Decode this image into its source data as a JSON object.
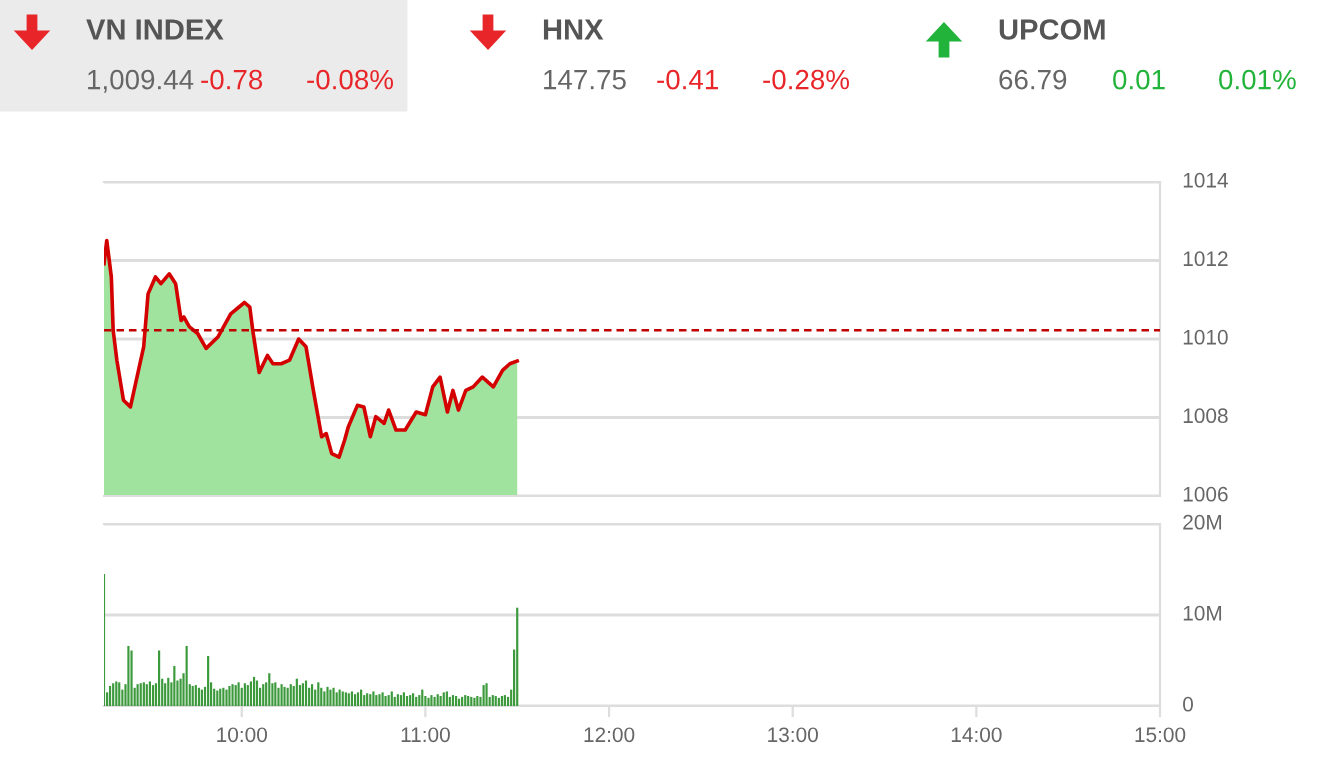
{
  "chart_data": [
    {
      "type": "other",
      "categories": [
        "VN INDEX",
        "HNX",
        "UPCOM"
      ],
      "colors": [
        "#e8262a",
        "#e8262a",
        "#22b33a"
      ],
      "series": [
        {
          "values": [
            1009.44,
            147.75,
            66.79
          ],
          "value_labels": [
            "1,009.44",
            "147.75",
            "66.79"
          ]
        },
        {
          "values": [
            -0.78,
            -0.41,
            0.01
          ],
          "value_labels": [
            "-0.78",
            "-0.41",
            "0.01"
          ]
        },
        {
          "values": [
            -0.08,
            -0.28,
            0.01
          ],
          "value_labels": [
            "-0.08%",
            "-0.28%",
            "0.01%"
          ]
        }
      ]
    },
    {
      "type": "area",
      "xlim": [
        9.25,
        15
      ],
      "ylim": [
        1006,
        1014
      ],
      "yticks": [
        1006,
        1008,
        1010,
        1012,
        1014
      ],
      "grid": "y",
      "tick_labels": "y",
      "ref_lines": [
        {
          "axis": "y",
          "value": 1010.22,
          "color": "#c00000",
          "line_style": "dashed"
        }
      ],
      "series": [
        {
          "type": "area",
          "color": "#9fe39f",
          "x": [
            9.25,
            9.265,
            9.29,
            9.3,
            9.32,
            9.356,
            9.394,
            9.45,
            9.466,
            9.49,
            9.53,
            9.56,
            9.605,
            9.64,
            9.67,
            9.685,
            9.715,
            9.76,
            9.806,
            9.87,
            9.94,
            10.015,
            10.044,
            10.06,
            10.095,
            10.14,
            10.17,
            10.215,
            10.26,
            10.31,
            10.35,
            10.39,
            10.435,
            10.46,
            10.49,
            10.53,
            10.56,
            10.58,
            10.63,
            10.665,
            10.7,
            10.73,
            10.775,
            10.8,
            10.84,
            10.89,
            10.95,
            11.0,
            11.04,
            11.08,
            11.12,
            11.15,
            11.18,
            11.22,
            11.26,
            11.31,
            11.37,
            11.42,
            11.46,
            11.5
          ],
          "values": [
            1011.92,
            1012.51,
            1011.58,
            1010.22,
            1009.46,
            1008.44,
            1008.27,
            1009.46,
            1009.8,
            1011.15,
            1011.58,
            1011.41,
            1011.66,
            1011.41,
            1010.47,
            1010.56,
            1010.31,
            1010.14,
            1009.76,
            1010.05,
            1010.64,
            1010.93,
            1010.81,
            1010.22,
            1009.15,
            1009.58,
            1009.37,
            1009.37,
            1009.46,
            1010.0,
            1009.8,
            1008.69,
            1007.51,
            1007.59,
            1007.08,
            1006.99,
            1007.42,
            1007.76,
            1008.31,
            1008.27,
            1007.51,
            1008.02,
            1007.85,
            1008.19,
            1007.68,
            1007.68,
            1008.14,
            1008.07,
            1008.78,
            1009.03,
            1008.14,
            1008.69,
            1008.19,
            1008.69,
            1008.78,
            1009.03,
            1008.78,
            1009.2,
            1009.37,
            1009.44
          ]
        },
        {
          "type": "line",
          "color": "#d40000",
          "x": [
            9.25,
            9.265,
            9.29,
            9.3,
            9.32,
            9.356,
            9.394,
            9.45,
            9.466,
            9.49,
            9.53,
            9.56,
            9.605,
            9.64,
            9.67,
            9.685,
            9.715,
            9.76,
            9.806,
            9.87,
            9.94,
            10.015,
            10.044,
            10.06,
            10.095,
            10.14,
            10.17,
            10.215,
            10.26,
            10.31,
            10.35,
            10.39,
            10.435,
            10.46,
            10.49,
            10.53,
            10.56,
            10.58,
            10.63,
            10.665,
            10.7,
            10.73,
            10.775,
            10.8,
            10.84,
            10.89,
            10.95,
            11.0,
            11.04,
            11.08,
            11.12,
            11.15,
            11.18,
            11.22,
            11.26,
            11.31,
            11.37,
            11.42,
            11.46,
            11.5
          ],
          "values": [
            1011.92,
            1012.51,
            1011.58,
            1010.22,
            1009.46,
            1008.44,
            1008.27,
            1009.46,
            1009.8,
            1011.15,
            1011.58,
            1011.41,
            1011.66,
            1011.41,
            1010.47,
            1010.56,
            1010.31,
            1010.14,
            1009.76,
            1010.05,
            1010.64,
            1010.93,
            1010.81,
            1010.22,
            1009.15,
            1009.58,
            1009.37,
            1009.37,
            1009.46,
            1010.0,
            1009.8,
            1008.69,
            1007.51,
            1007.59,
            1007.08,
            1006.99,
            1007.42,
            1007.76,
            1008.31,
            1008.27,
            1007.51,
            1008.02,
            1007.85,
            1008.19,
            1007.68,
            1007.68,
            1008.14,
            1008.07,
            1008.78,
            1009.03,
            1008.14,
            1008.69,
            1008.19,
            1008.69,
            1008.78,
            1009.03,
            1008.78,
            1009.2,
            1009.37,
            1009.44
          ]
        }
      ]
    },
    {
      "type": "bar",
      "xlim": [
        9.25,
        15
      ],
      "ylim": [
        0,
        20
      ],
      "grid": "y",
      "yticks": [
        0,
        {
          "value": 10,
          "label": "10M"
        },
        {
          "value": 20,
          "label": "20M"
        }
      ],
      "xticks": [
        {
          "value": 10,
          "label": "10:00"
        },
        {
          "value": 11,
          "label": "11:00"
        },
        {
          "value": 12,
          "label": "12:00"
        },
        {
          "value": 13,
          "label": "13:00"
        },
        {
          "value": 14,
          "label": "14:00"
        },
        {
          "value": 15,
          "label": "15:00"
        }
      ],
      "series": [
        {
          "color": "#3c9a3c",
          "x": [
            9.25,
            9.267,
            9.283,
            9.3,
            9.317,
            9.333,
            9.35,
            9.367,
            9.383,
            9.4,
            9.417,
            9.433,
            9.45,
            9.467,
            9.483,
            9.5,
            9.517,
            9.533,
            9.55,
            9.567,
            9.583,
            9.6,
            9.617,
            9.633,
            9.65,
            9.667,
            9.683,
            9.7,
            9.717,
            9.733,
            9.75,
            9.767,
            9.783,
            9.8,
            9.817,
            9.833,
            9.85,
            9.867,
            9.883,
            9.9,
            9.917,
            9.933,
            9.95,
            9.967,
            9.983,
            10.0,
            10.017,
            10.033,
            10.05,
            10.067,
            10.083,
            10.1,
            10.117,
            10.133,
            10.15,
            10.167,
            10.183,
            10.2,
            10.217,
            10.233,
            10.25,
            10.267,
            10.283,
            10.3,
            10.317,
            10.333,
            10.35,
            10.367,
            10.383,
            10.4,
            10.417,
            10.433,
            10.45,
            10.467,
            10.483,
            10.5,
            10.517,
            10.533,
            10.55,
            10.567,
            10.583,
            10.6,
            10.617,
            10.633,
            10.65,
            10.667,
            10.683,
            10.7,
            10.717,
            10.733,
            10.75,
            10.767,
            10.783,
            10.8,
            10.817,
            10.833,
            10.85,
            10.867,
            10.883,
            10.9,
            10.917,
            10.933,
            10.95,
            10.967,
            10.983,
            11.0,
            11.017,
            11.033,
            11.05,
            11.067,
            11.083,
            11.1,
            11.117,
            11.133,
            11.15,
            11.167,
            11.183,
            11.2,
            11.217,
            11.233,
            11.25,
            11.267,
            11.283,
            11.3,
            11.317,
            11.333,
            11.35,
            11.367,
            11.383,
            11.4,
            11.417,
            11.433,
            11.45,
            11.467,
            11.483,
            11.5
          ],
          "values": [
            14.5,
            1.5,
            2.2,
            2.5,
            2.7,
            2.6,
            1.8,
            2.4,
            6.6,
            6.1,
            2.0,
            2.4,
            2.5,
            2.6,
            2.4,
            2.7,
            2.3,
            2.5,
            6.1,
            3.0,
            2.5,
            3.1,
            2.6,
            4.4,
            2.8,
            3.0,
            3.6,
            6.6,
            2.4,
            2.2,
            2.3,
            2.0,
            1.8,
            2.1,
            5.5,
            2.6,
            1.9,
            1.7,
            1.9,
            2.0,
            1.8,
            2.2,
            2.4,
            2.3,
            2.6,
            2.0,
            2.5,
            2.3,
            2.7,
            3.2,
            2.8,
            2.0,
            2.4,
            2.6,
            3.6,
            2.5,
            2.6,
            2.0,
            2.4,
            2.1,
            2.0,
            2.4,
            2.2,
            3.0,
            2.3,
            2.5,
            2.8,
            2.0,
            2.4,
            1.8,
            2.6,
            2.0,
            1.6,
            2.1,
            1.8,
            2.0,
            1.5,
            1.8,
            1.6,
            1.5,
            1.4,
            1.6,
            1.3,
            1.5,
            1.8,
            1.2,
            1.4,
            1.3,
            1.6,
            1.2,
            1.3,
            1.5,
            1.1,
            1.2,
            1.6,
            1.0,
            1.3,
            1.2,
            1.5,
            1.1,
            1.2,
            1.4,
            1.0,
            1.2,
            1.8,
            1.1,
            0.9,
            1.2,
            1.0,
            1.3,
            1.1,
            1.5,
            1.6,
            1.0,
            1.2,
            1.1,
            0.8,
            1.0,
            1.2,
            1.1,
            1.0,
            0.9,
            1.1,
            1.0,
            2.3,
            2.5,
            1.0,
            1.2,
            1.1,
            0.9,
            1.1,
            1.2,
            1.0,
            1.8,
            6.2,
            10.8
          ]
        }
      ]
    }
  ]
}
